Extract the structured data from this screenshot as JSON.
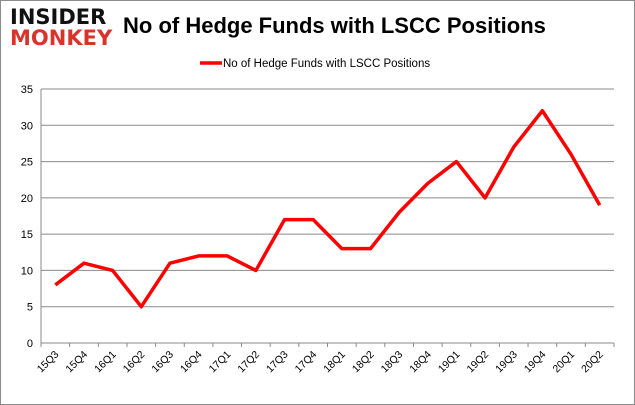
{
  "logo": {
    "line1": "INSIDER",
    "line2": "MONKEY"
  },
  "chart_data": {
    "type": "line",
    "title": "No of Hedge Funds with LSCC Positions",
    "categories": [
      "15Q3",
      "15Q4",
      "16Q1",
      "16Q2",
      "16Q3",
      "16Q4",
      "17Q1",
      "17Q2",
      "17Q3",
      "17Q4",
      "18Q1",
      "18Q2",
      "18Q3",
      "18Q4",
      "19Q1",
      "19Q2",
      "19Q3",
      "19Q4",
      "20Q1",
      "20Q2"
    ],
    "series": [
      {
        "name": "No of Hedge Funds with LSCC Positions",
        "color": "#ff0000",
        "values": [
          8,
          11,
          10,
          5,
          11,
          12,
          12,
          10,
          17,
          17,
          13,
          13,
          18,
          22,
          25,
          20,
          27,
          32,
          26,
          19
        ]
      }
    ],
    "ylim": [
      0,
      35
    ],
    "yticks": [
      0,
      5,
      10,
      15,
      20,
      25,
      30,
      35
    ],
    "grid": true,
    "legend": "top-center"
  }
}
